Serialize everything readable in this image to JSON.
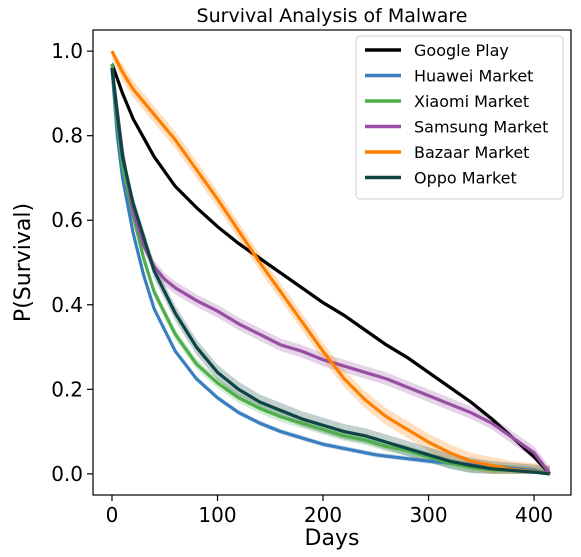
{
  "chart_data": {
    "type": "line",
    "title": "Survival Analysis of Malware",
    "xlabel": "Days",
    "ylabel": "P(Survival)",
    "xlim": [
      -18,
      435
    ],
    "ylim": [
      -0.05,
      1.05
    ],
    "xticks": [
      0,
      100,
      200,
      300,
      400
    ],
    "yticks": [
      0.0,
      0.2,
      0.4,
      0.6,
      0.8,
      1.0
    ],
    "xtick_labels": [
      "0",
      "100",
      "200",
      "300",
      "400"
    ],
    "ytick_labels": [
      "0.0",
      "0.2",
      "0.4",
      "0.6",
      "0.8",
      "1.0"
    ],
    "grid": false,
    "legend_position": "top-right",
    "series": [
      {
        "name": "Google Play",
        "color": "#000000",
        "band": 0.005,
        "x": [
          0,
          10,
          20,
          40,
          60,
          80,
          100,
          120,
          140,
          160,
          180,
          200,
          220,
          240,
          260,
          280,
          300,
          320,
          340,
          360,
          380,
          400,
          415
        ],
        "y": [
          0.97,
          0.9,
          0.84,
          0.75,
          0.68,
          0.63,
          0.585,
          0.545,
          0.51,
          0.475,
          0.44,
          0.405,
          0.375,
          0.34,
          0.305,
          0.275,
          0.24,
          0.205,
          0.17,
          0.13,
          0.085,
          0.04,
          0.0
        ]
      },
      {
        "name": "Huawei Market",
        "color": "#3a7ebf",
        "band": 0.006,
        "x": [
          0,
          5,
          10,
          20,
          30,
          40,
          60,
          80,
          100,
          120,
          140,
          160,
          180,
          200,
          250,
          300,
          350,
          400,
          415
        ],
        "y": [
          0.96,
          0.8,
          0.7,
          0.57,
          0.47,
          0.39,
          0.29,
          0.225,
          0.18,
          0.145,
          0.12,
          0.1,
          0.085,
          0.07,
          0.045,
          0.03,
          0.02,
          0.008,
          0.0
        ]
      },
      {
        "name": "Xiaomi Market",
        "color": "#4daf4a",
        "band": 0.012,
        "x": [
          0,
          5,
          10,
          20,
          30,
          40,
          50,
          60,
          70,
          80,
          100,
          120,
          140,
          160,
          180,
          200,
          220,
          240,
          260,
          280,
          300,
          320,
          340,
          360,
          380,
          400,
          415
        ],
        "y": [
          0.97,
          0.83,
          0.73,
          0.61,
          0.51,
          0.43,
          0.38,
          0.33,
          0.295,
          0.26,
          0.215,
          0.18,
          0.155,
          0.135,
          0.12,
          0.105,
          0.09,
          0.08,
          0.065,
          0.055,
          0.04,
          0.025,
          0.015,
          0.01,
          0.008,
          0.005,
          0.0
        ]
      },
      {
        "name": "Samsung Market",
        "color": "#984ea3",
        "band": 0.015,
        "x": [
          0,
          5,
          10,
          20,
          30,
          40,
          50,
          60,
          80,
          100,
          120,
          140,
          160,
          180,
          200,
          220,
          240,
          260,
          280,
          300,
          320,
          340,
          360,
          380,
          400,
          415
        ],
        "y": [
          0.96,
          0.86,
          0.76,
          0.62,
          0.54,
          0.49,
          0.46,
          0.44,
          0.41,
          0.385,
          0.355,
          0.33,
          0.305,
          0.29,
          0.27,
          0.255,
          0.24,
          0.225,
          0.205,
          0.185,
          0.165,
          0.145,
          0.12,
          0.085,
          0.05,
          0.0
        ]
      },
      {
        "name": "Bazaar Market",
        "color": "#ff7f00",
        "band": 0.02,
        "x": [
          0,
          10,
          20,
          40,
          60,
          80,
          100,
          120,
          140,
          160,
          180,
          200,
          220,
          240,
          260,
          280,
          300,
          320,
          340,
          360,
          380,
          400,
          415
        ],
        "y": [
          1.0,
          0.95,
          0.91,
          0.85,
          0.79,
          0.72,
          0.65,
          0.575,
          0.5,
          0.43,
          0.36,
          0.29,
          0.225,
          0.175,
          0.135,
          0.105,
          0.075,
          0.05,
          0.03,
          0.02,
          0.01,
          0.005,
          0.0
        ]
      },
      {
        "name": "Oppo Market",
        "color": "#0d4444",
        "band": 0.018,
        "x": [
          0,
          5,
          10,
          20,
          30,
          40,
          50,
          60,
          70,
          80,
          100,
          120,
          140,
          160,
          180,
          200,
          220,
          240,
          260,
          280,
          300,
          320,
          340,
          360,
          380,
          400,
          415
        ],
        "y": [
          0.96,
          0.85,
          0.75,
          0.64,
          0.56,
          0.48,
          0.43,
          0.38,
          0.34,
          0.3,
          0.24,
          0.2,
          0.17,
          0.15,
          0.13,
          0.115,
          0.1,
          0.09,
          0.075,
          0.06,
          0.045,
          0.03,
          0.02,
          0.012,
          0.008,
          0.004,
          0.0
        ]
      }
    ]
  }
}
